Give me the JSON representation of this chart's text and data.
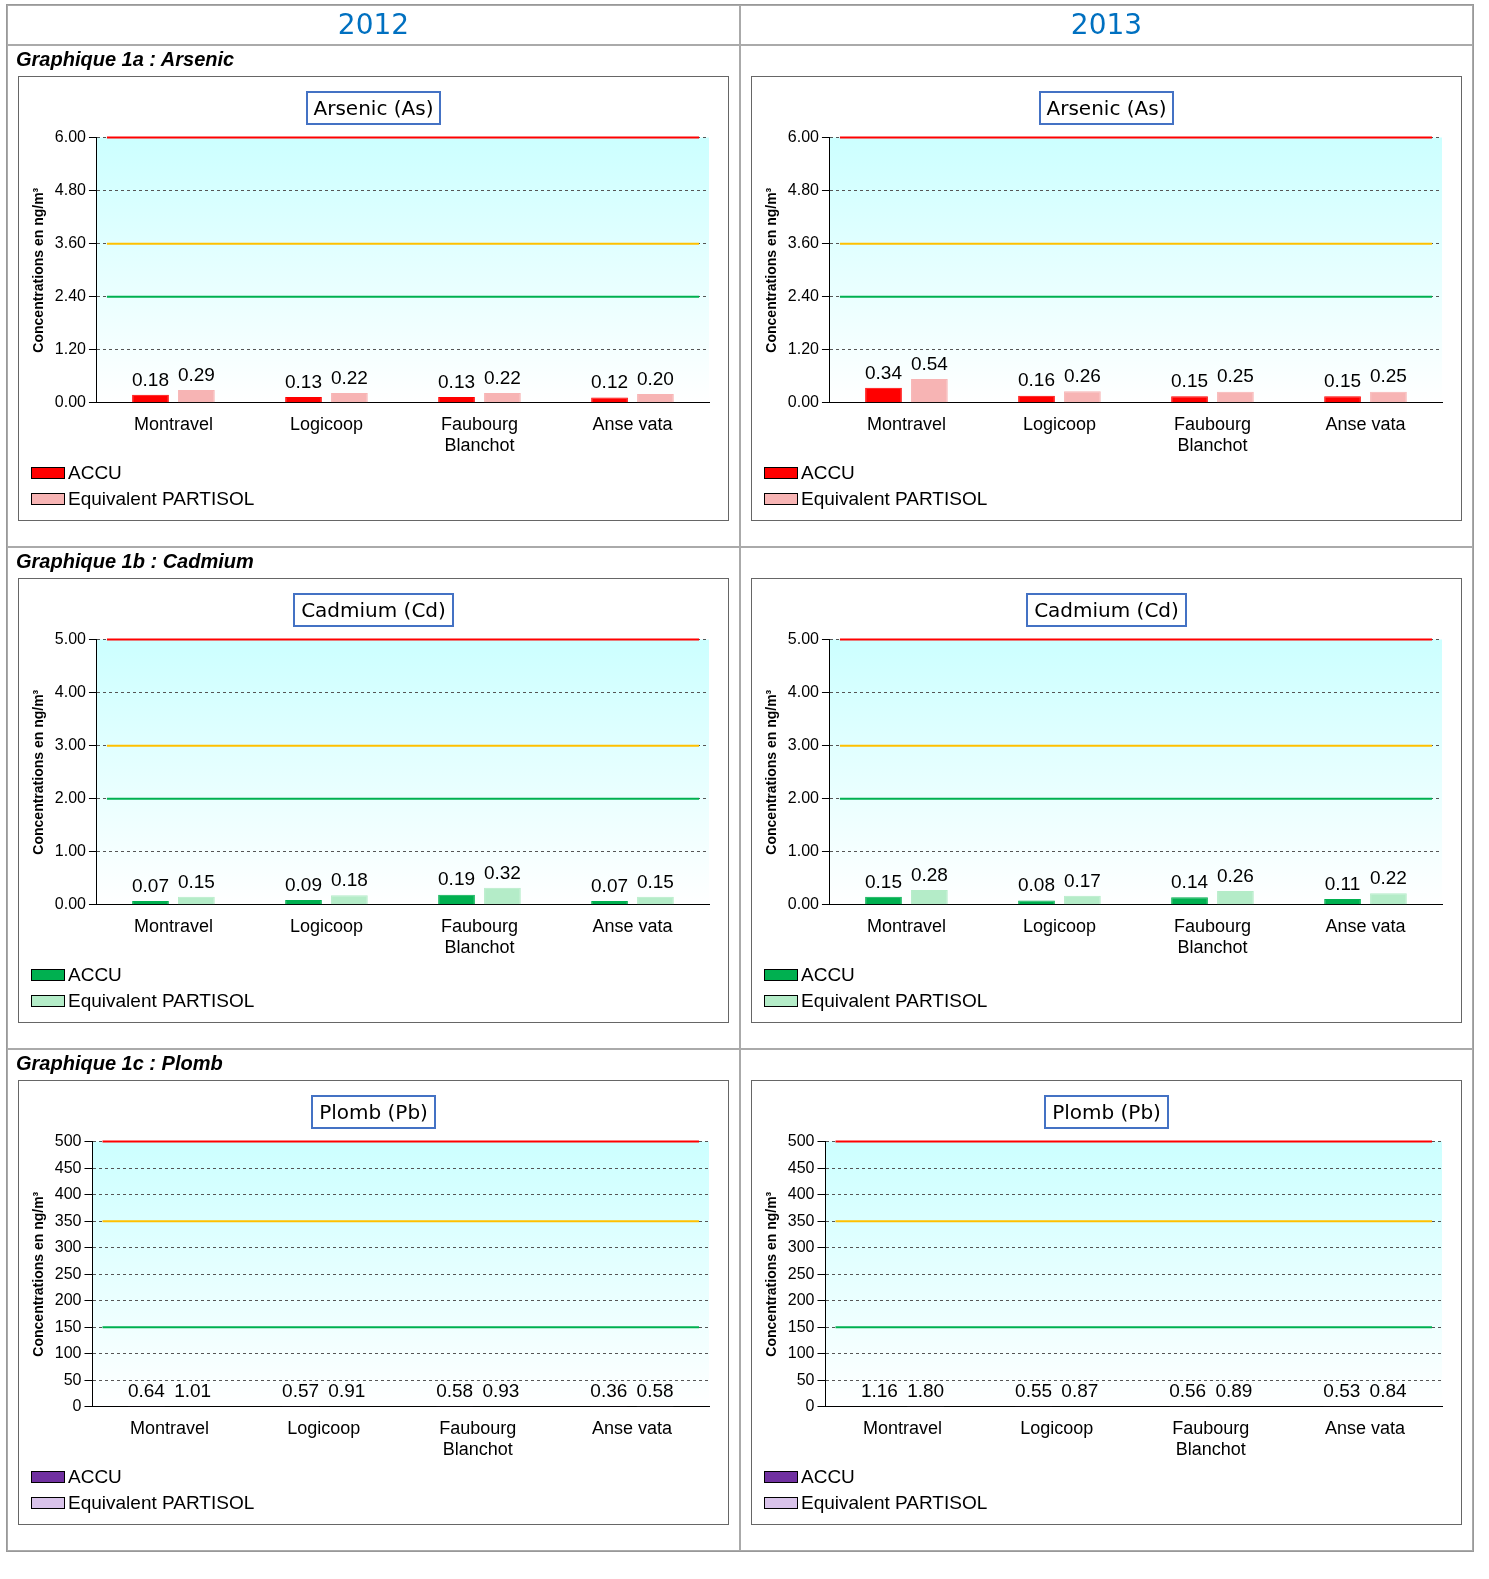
{
  "chart_data": [
    {
      "type": "bar",
      "title": "Arsenic (As)",
      "subtitle": "2012",
      "annotations": [
        "Graphique 1a : Arsenic"
      ],
      "ylabel": "Concentrations en ng/m³",
      "categories": [
        "Montravel",
        "Logicoop",
        "Faubourg Blanchot",
        "Anse vata"
      ],
      "series": [
        {
          "name": "ACCU",
          "color": "#ff0000",
          "values": [
            0.18,
            0.13,
            0.13,
            0.12
          ],
          "value_labels": [
            "0.18",
            "0.13",
            "0.13",
            "0.12"
          ]
        },
        {
          "name": "Equivalent PARTISOL",
          "color": "#f7b4b4",
          "values": [
            0.29,
            0.22,
            0.22,
            0.2
          ],
          "value_labels": [
            "0.29",
            "0.22",
            "0.22",
            "0.20"
          ]
        }
      ],
      "ylim": [
        0,
        6
      ],
      "yticks": [
        {
          "value": 0,
          "label": "0.00"
        },
        {
          "value": 1.2,
          "label": "1.20"
        },
        {
          "value": 2.4,
          "label": "2.40"
        },
        {
          "value": 3.6,
          "label": "3.60"
        },
        {
          "value": 4.8,
          "label": "4.80"
        },
        {
          "value": 6,
          "label": "6.00"
        }
      ],
      "ref_lines": [
        {
          "axis": "y",
          "value": 6,
          "color": "#ff0000"
        },
        {
          "axis": "y",
          "value": 3.6,
          "color": "#ffc000"
        },
        {
          "axis": "y",
          "value": 2.4,
          "color": "#00b050"
        }
      ],
      "bands": [
        {
          "axis": "y",
          "from": 0,
          "to": 6,
          "color": "#ccffff"
        }
      ],
      "grid": "y",
      "legend": "bottom left"
    },
    {
      "type": "bar",
      "title": "Arsenic (As)",
      "subtitle": "2013",
      "ylabel": "Concentrations en ng/m³",
      "categories": [
        "Montravel",
        "Logicoop",
        "Faubourg Blanchot",
        "Anse vata"
      ],
      "series": [
        {
          "name": "ACCU",
          "color": "#ff0000",
          "values": [
            0.34,
            0.16,
            0.15,
            0.15
          ],
          "value_labels": [
            "0.34",
            "0.16",
            "0.15",
            "0.15"
          ]
        },
        {
          "name": "Equivalent PARTISOL",
          "color": "#f7b4b4",
          "values": [
            0.54,
            0.26,
            0.25,
            0.25
          ],
          "value_labels": [
            "0.54",
            "0.26",
            "0.25",
            "0.25"
          ]
        }
      ],
      "ylim": [
        0,
        6
      ],
      "yticks": [
        {
          "value": 0,
          "label": "0.00"
        },
        {
          "value": 1.2,
          "label": "1.20"
        },
        {
          "value": 2.4,
          "label": "2.40"
        },
        {
          "value": 3.6,
          "label": "3.60"
        },
        {
          "value": 4.8,
          "label": "4.80"
        },
        {
          "value": 6,
          "label": "6.00"
        }
      ],
      "ref_lines": [
        {
          "axis": "y",
          "value": 6,
          "color": "#ff0000"
        },
        {
          "axis": "y",
          "value": 3.6,
          "color": "#ffc000"
        },
        {
          "axis": "y",
          "value": 2.4,
          "color": "#00b050"
        }
      ],
      "bands": [
        {
          "axis": "y",
          "from": 0,
          "to": 6,
          "color": "#ccffff"
        }
      ],
      "grid": "y",
      "legend": "bottom left"
    },
    {
      "type": "bar",
      "title": "Cadmium (Cd)",
      "annotations": [
        "Graphique 1b : Cadmium"
      ],
      "ylabel": "Concentrations en ng/m³",
      "categories": [
        "Montravel",
        "Logicoop",
        "Faubourg Blanchot",
        "Anse vata"
      ],
      "series": [
        {
          "name": "ACCU",
          "color": "#00b050",
          "values": [
            0.07,
            0.09,
            0.19,
            0.07
          ],
          "value_labels": [
            "0.07",
            "0.09",
            "0.19",
            "0.07"
          ]
        },
        {
          "name": "Equivalent PARTISOL",
          "color": "#b4ecc8",
          "values": [
            0.15,
            0.18,
            0.32,
            0.15
          ],
          "value_labels": [
            "0.15",
            "0.18",
            "0.32",
            "0.15"
          ]
        }
      ],
      "ylim": [
        0,
        5
      ],
      "yticks": [
        {
          "value": 0,
          "label": "0.00"
        },
        {
          "value": 1,
          "label": "1.00"
        },
        {
          "value": 2,
          "label": "2.00"
        },
        {
          "value": 3,
          "label": "3.00"
        },
        {
          "value": 4,
          "label": "4.00"
        },
        {
          "value": 5,
          "label": "5.00"
        }
      ],
      "ref_lines": [
        {
          "axis": "y",
          "value": 5,
          "color": "#ff0000"
        },
        {
          "axis": "y",
          "value": 3,
          "color": "#ffc000"
        },
        {
          "axis": "y",
          "value": 2,
          "color": "#00b050"
        }
      ],
      "bands": [
        {
          "axis": "y",
          "from": 0,
          "to": 5,
          "color": "#ccffff"
        }
      ],
      "grid": "y",
      "legend": "bottom left"
    },
    {
      "type": "bar",
      "title": "Cadmium (Cd)",
      "ylabel": "Concentrations en ng/m³",
      "categories": [
        "Montravel",
        "Logicoop",
        "Faubourg Blanchot",
        "Anse vata"
      ],
      "series": [
        {
          "name": "ACCU",
          "color": "#00b050",
          "values": [
            0.15,
            0.08,
            0.14,
            0.11
          ],
          "value_labels": [
            "0.15",
            "0.08",
            "0.14",
            "0.11"
          ]
        },
        {
          "name": "Equivalent PARTISOL",
          "color": "#b4ecc8",
          "values": [
            0.28,
            0.17,
            0.26,
            0.22
          ],
          "value_labels": [
            "0.28",
            "0.17",
            "0.26",
            "0.22"
          ]
        }
      ],
      "ylim": [
        0,
        5
      ],
      "yticks": [
        {
          "value": 0,
          "label": "0.00"
        },
        {
          "value": 1,
          "label": "1.00"
        },
        {
          "value": 2,
          "label": "2.00"
        },
        {
          "value": 3,
          "label": "3.00"
        },
        {
          "value": 4,
          "label": "4.00"
        },
        {
          "value": 5,
          "label": "5.00"
        }
      ],
      "ref_lines": [
        {
          "axis": "y",
          "value": 5,
          "color": "#ff0000"
        },
        {
          "axis": "y",
          "value": 3,
          "color": "#ffc000"
        },
        {
          "axis": "y",
          "value": 2,
          "color": "#00b050"
        }
      ],
      "bands": [
        {
          "axis": "y",
          "from": 0,
          "to": 5,
          "color": "#ccffff"
        }
      ],
      "grid": "y",
      "legend": "bottom left"
    },
    {
      "type": "bar",
      "title": "Plomb (Pb)",
      "annotations": [
        "Graphique 1c : Plomb"
      ],
      "ylabel": "Concentrations en ng/m³",
      "categories": [
        "Montravel",
        "Logicoop",
        "Faubourg Blanchot",
        "Anse vata"
      ],
      "series": [
        {
          "name": "ACCU",
          "color": "#7030a0",
          "values": [
            0.64,
            0.57,
            0.58,
            0.36
          ],
          "value_labels": [
            "0.64",
            "0.57",
            "0.58",
            "0.36"
          ]
        },
        {
          "name": "Equivalent PARTISOL",
          "color": "#d9c3ea",
          "values": [
            1.01,
            0.91,
            0.93,
            0.58
          ],
          "value_labels": [
            "1.01",
            "0.91",
            "0.93",
            "0.58"
          ]
        }
      ],
      "ylim": [
        0,
        500
      ],
      "yticks": [
        0,
        50,
        100,
        150,
        200,
        250,
        300,
        350,
        400,
        450,
        500
      ],
      "ref_lines": [
        {
          "axis": "y",
          "value": 500,
          "color": "#ff0000"
        },
        {
          "axis": "y",
          "value": 350,
          "color": "#ffc000"
        },
        {
          "axis": "y",
          "value": 150,
          "color": "#00b050"
        }
      ],
      "bands": [
        {
          "axis": "y",
          "from": 0,
          "to": 500,
          "color": "#ccffff"
        }
      ],
      "grid": "y",
      "legend": "bottom left"
    },
    {
      "type": "bar",
      "title": "Plomb (Pb)",
      "ylabel": "Concentrations en ng/m³",
      "categories": [
        "Montravel",
        "Logicoop",
        "Faubourg Blanchot",
        "Anse vata"
      ],
      "series": [
        {
          "name": "ACCU",
          "color": "#7030a0",
          "values": [
            1.16,
            0.55,
            0.56,
            0.53
          ],
          "value_labels": [
            "1.16",
            "0.55",
            "0.56",
            "0.53"
          ]
        },
        {
          "name": "Equivalent PARTISOL",
          "color": "#d9c3ea",
          "values": [
            1.8,
            0.87,
            0.89,
            0.84
          ],
          "value_labels": [
            "1.80",
            "0.87",
            "0.89",
            "0.84"
          ]
        }
      ],
      "ylim": [
        0,
        500
      ],
      "yticks": [
        0,
        50,
        100,
        150,
        200,
        250,
        300,
        350,
        400,
        450,
        500
      ],
      "ref_lines": [
        {
          "axis": "y",
          "value": 500,
          "color": "#ff0000"
        },
        {
          "axis": "y",
          "value": 350,
          "color": "#ffc000"
        },
        {
          "axis": "y",
          "value": 150,
          "color": "#00b050"
        }
      ],
      "bands": [
        {
          "axis": "y",
          "from": 0,
          "to": 500,
          "color": "#ccffff"
        }
      ],
      "grid": "y",
      "legend": "bottom left"
    }
  ]
}
